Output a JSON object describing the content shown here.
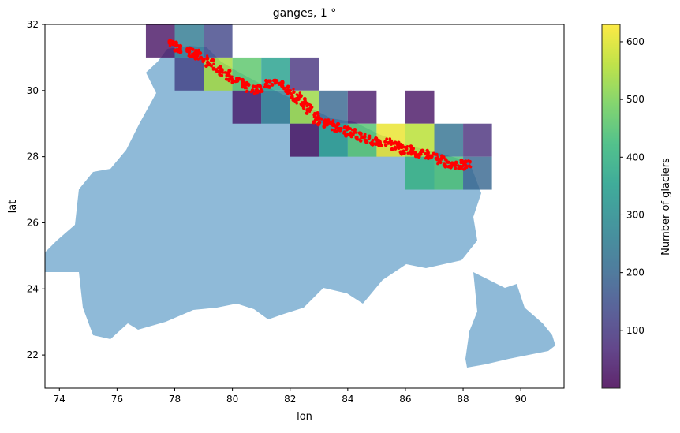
{
  "chart_data": {
    "type": "heatmap",
    "title": "ganges, 1 °",
    "xlabel": "lon",
    "ylabel": "lat",
    "xlim": [
      73.5,
      91.5
    ],
    "ylim": [
      21,
      32
    ],
    "xticks": [
      74,
      76,
      78,
      80,
      82,
      84,
      86,
      88,
      90
    ],
    "yticks": [
      22,
      24,
      26,
      28,
      30,
      32
    ],
    "grid": false,
    "colorbar": {
      "label": "Number of glaciers",
      "range": [
        0,
        630
      ],
      "ticks": [
        100,
        200,
        300,
        400,
        500,
        600
      ],
      "colormap": "viridis",
      "alpha": 0.8
    },
    "basin_color": "#8fbad8",
    "glacier_color": "#ff0000",
    "cells": [
      {
        "lon": 77,
        "lat": 31,
        "count": 30
      },
      {
        "lon": 78,
        "lat": 31,
        "count": 250
      },
      {
        "lon": 79,
        "lat": 31,
        "count": 130
      },
      {
        "lon": 78,
        "lat": 30,
        "count": 120
      },
      {
        "lon": 79,
        "lat": 30,
        "count": 540
      },
      {
        "lon": 80,
        "lat": 30,
        "count": 460
      },
      {
        "lon": 81,
        "lat": 30,
        "count": 350
      },
      {
        "lon": 82,
        "lat": 30,
        "count": 90
      },
      {
        "lon": 80,
        "lat": 29,
        "count": 40
      },
      {
        "lon": 81,
        "lat": 29,
        "count": 250
      },
      {
        "lon": 82,
        "lat": 29,
        "count": 530
      },
      {
        "lon": 83,
        "lat": 29,
        "count": 200
      },
      {
        "lon": 84,
        "lat": 29,
        "count": 40
      },
      {
        "lon": 86,
        "lat": 29,
        "count": 30
      },
      {
        "lon": 82,
        "lat": 28,
        "count": 20
      },
      {
        "lon": 83,
        "lat": 28,
        "count": 330
      },
      {
        "lon": 84,
        "lat": 28,
        "count": 450
      },
      {
        "lon": 85,
        "lat": 28,
        "count": 610
      },
      {
        "lon": 86,
        "lat": 28,
        "count": 560
      },
      {
        "lon": 87,
        "lat": 28,
        "count": 230
      },
      {
        "lon": 88,
        "lat": 28,
        "count": 80
      },
      {
        "lon": 86,
        "lat": 27,
        "count": 400
      },
      {
        "lon": 87,
        "lat": 27,
        "count": 440
      },
      {
        "lon": 88,
        "lat": 27,
        "count": 200
      }
    ],
    "glacier_belt": [
      [
        77.8,
        31.4
      ],
      [
        78.5,
        31.2
      ],
      [
        79.0,
        31.0
      ],
      [
        79.6,
        30.6
      ],
      [
        80.2,
        30.3
      ],
      [
        80.8,
        30.0
      ],
      [
        81.5,
        30.3
      ],
      [
        82.0,
        30.0
      ],
      [
        82.5,
        29.6
      ],
      [
        83.0,
        29.1
      ],
      [
        83.6,
        28.9
      ],
      [
        84.2,
        28.7
      ],
      [
        84.8,
        28.5
      ],
      [
        85.5,
        28.4
      ],
      [
        86.0,
        28.2
      ],
      [
        86.6,
        28.1
      ],
      [
        87.2,
        27.9
      ],
      [
        87.8,
        27.7
      ],
      [
        88.2,
        27.8
      ]
    ]
  }
}
